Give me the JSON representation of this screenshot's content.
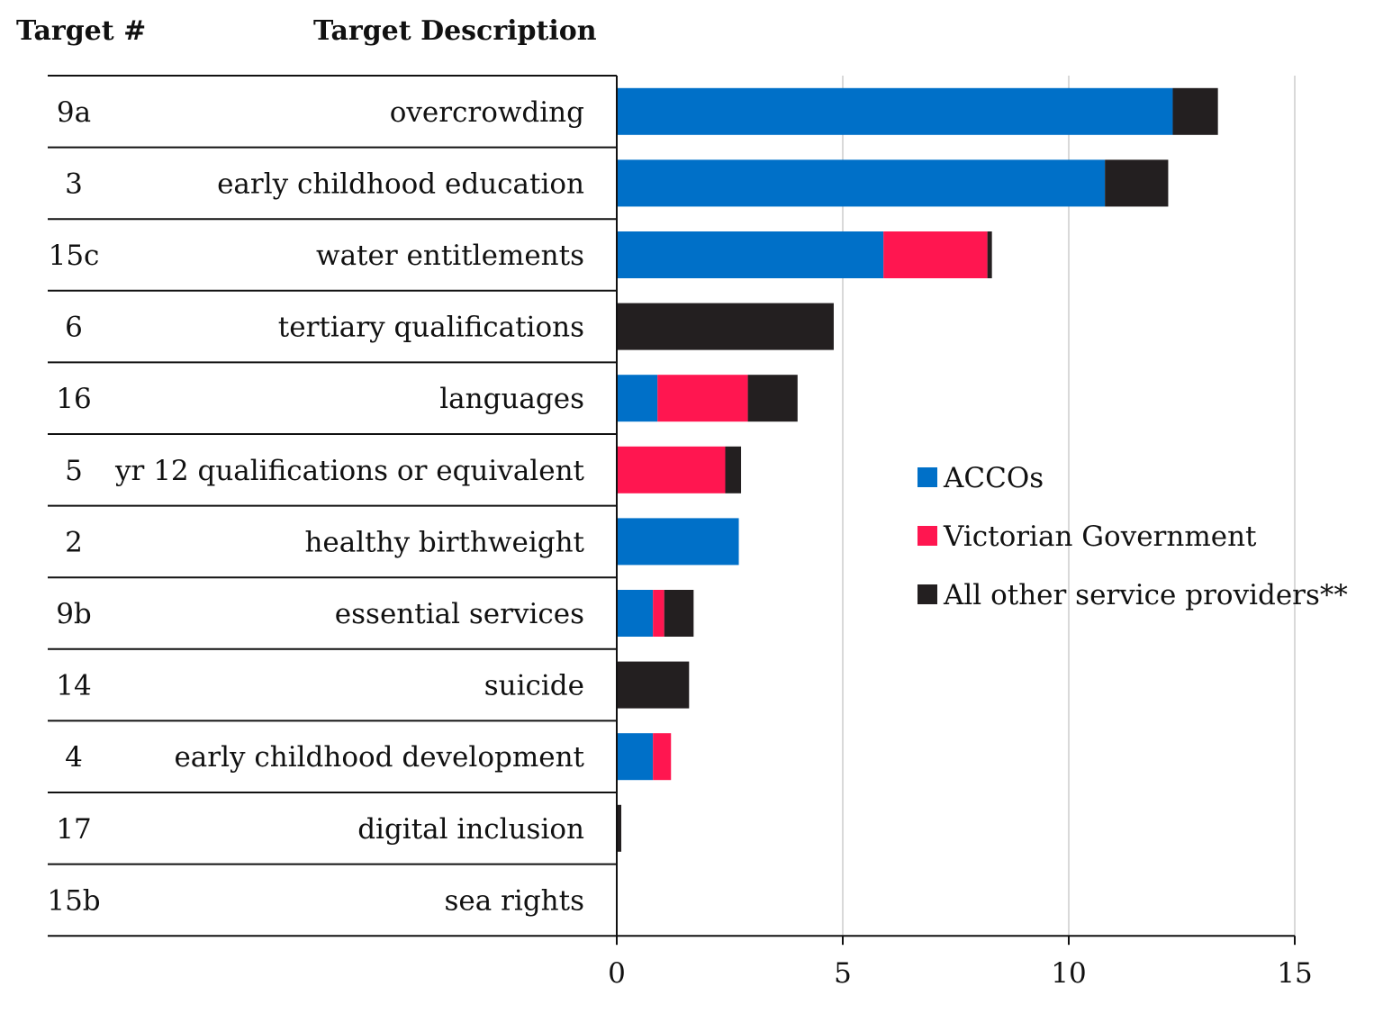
{
  "chart_data": {
    "type": "bar",
    "orientation": "horizontal",
    "stacked": true,
    "column_headers": {
      "target_number": "Target #",
      "target_description": "Target Description"
    },
    "rows": [
      {
        "target": "9a",
        "description": "overcrowding"
      },
      {
        "target": "3",
        "description": "early childhood education"
      },
      {
        "target": "15c",
        "description": "water entitlements"
      },
      {
        "target": "6",
        "description": "tertiary qualifications"
      },
      {
        "target": "16",
        "description": "languages"
      },
      {
        "target": "5",
        "description": "yr 12 qualifications or equivalent"
      },
      {
        "target": "2",
        "description": "healthy birthweight"
      },
      {
        "target": "9b",
        "description": "essential services"
      },
      {
        "target": "14",
        "description": "suicide"
      },
      {
        "target": "4",
        "description": "early childhood development"
      },
      {
        "target": "17",
        "description": "digital inclusion"
      },
      {
        "target": "15b",
        "description": "sea rights"
      }
    ],
    "series": [
      {
        "name": "ACCOs",
        "color": "#0070c8",
        "values": [
          12.3,
          10.8,
          5.9,
          0,
          0.9,
          0,
          2.7,
          0.8,
          0,
          0.8,
          0,
          0
        ]
      },
      {
        "name": "Victorian Government",
        "color": "#ff1650",
        "values": [
          0,
          0,
          2.3,
          0,
          2.0,
          2.4,
          0,
          0.25,
          0,
          0.4,
          0,
          0
        ]
      },
      {
        "name": "All other service providers**",
        "color": "#231f20",
        "values": [
          1.0,
          1.4,
          0.1,
          4.8,
          1.1,
          0.35,
          0,
          0.65,
          1.6,
          0,
          0.1,
          0
        ]
      }
    ],
    "xlim": [
      0,
      15
    ],
    "xticks": [
      "0",
      "5",
      "10",
      "15"
    ],
    "grid": true,
    "legend_position": "right"
  }
}
